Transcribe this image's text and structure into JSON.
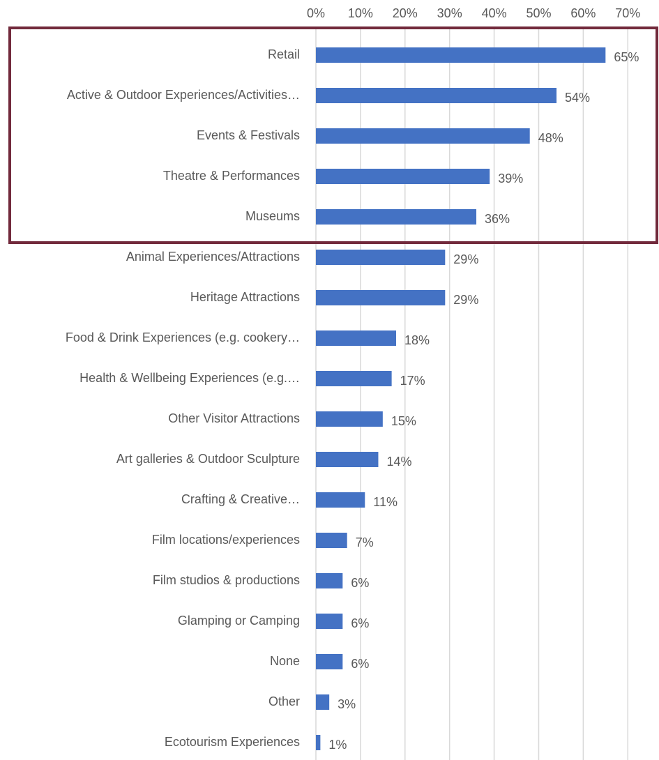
{
  "chart_data": {
    "type": "bar",
    "orientation": "horizontal",
    "categories": [
      "Retail",
      "Active & Outdoor Experiences/Activities…",
      "Events & Festivals",
      "Theatre & Performances",
      "Museums",
      "Animal Experiences/Attractions",
      "Heritage Attractions",
      "Food & Drink Experiences (e.g. cookery…",
      "Health & Wellbeing Experiences (e.g.…",
      "Other Visitor Attractions",
      "Art galleries & Outdoor Sculpture",
      "Crafting & Creative…",
      "Film locations/experiences",
      "Film studios & productions",
      "Glamping or Camping",
      "None",
      "Other",
      "Ecotourism Experiences"
    ],
    "values": [
      65,
      54,
      48,
      39,
      36,
      29,
      29,
      18,
      17,
      15,
      14,
      11,
      7,
      6,
      6,
      6,
      3,
      1
    ],
    "value_labels": [
      "65%",
      "54%",
      "48%",
      "39%",
      "36%",
      "29%",
      "29%",
      "18%",
      "17%",
      "15%",
      "14%",
      "11%",
      "7%",
      "6%",
      "6%",
      "6%",
      "3%",
      "1%"
    ],
    "color": "#4472c4",
    "xlim": [
      0,
      77
    ],
    "xticks": [
      {
        "value": 0,
        "label": "0%"
      },
      {
        "value": 10,
        "label": "10%"
      },
      {
        "value": 20,
        "label": "20%"
      },
      {
        "value": 30,
        "label": "30%"
      },
      {
        "value": 40,
        "label": "40%"
      },
      {
        "value": 50,
        "label": "50%"
      },
      {
        "value": 60,
        "label": "60%"
      },
      {
        "value": 70,
        "label": "70%"
      }
    ],
    "grid": true
  }
}
